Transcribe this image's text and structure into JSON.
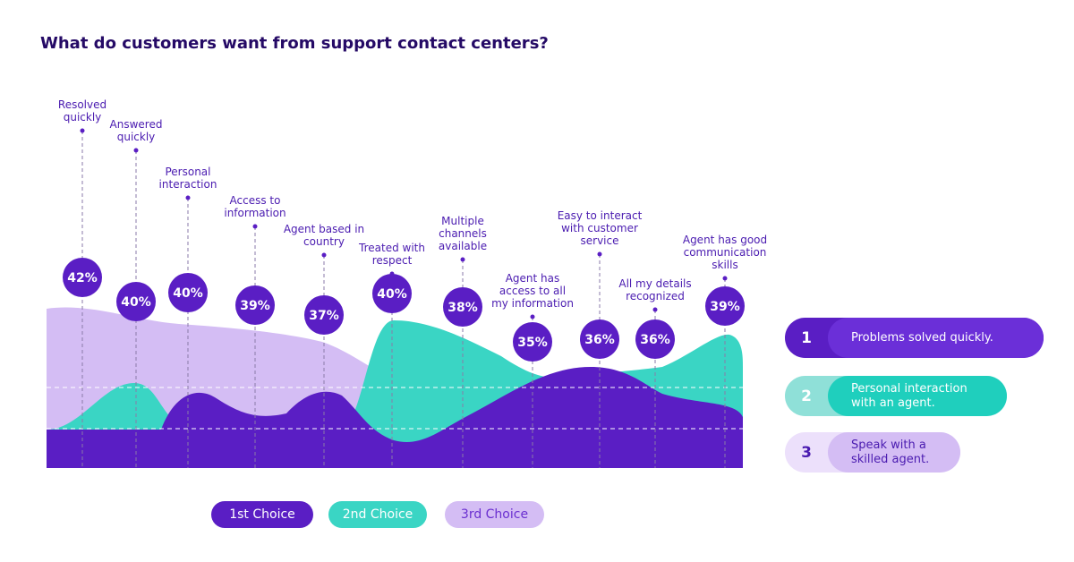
{
  "chart_data": {
    "type": "bubble-labels",
    "title": "What do customers want from support contact centers?",
    "categories": [
      "Resolved quickly",
      "Answered quickly",
      "Personal interaction",
      "Access to information",
      "Agent based in country",
      "Treated with respect",
      "Multiple channels available",
      "Agent has access to all my information",
      "Easy to interact with customer service",
      "All my details recognized",
      "Agent has good communication skills"
    ],
    "values": [
      42,
      40,
      40,
      39,
      37,
      40,
      38,
      35,
      36,
      36,
      39
    ],
    "value_labels": [
      "42%",
      "40%",
      "40%",
      "39%",
      "37%",
      "40%",
      "38%",
      "35%",
      "36%",
      "36%",
      "39%"
    ],
    "legend": [
      {
        "name": "1st Choice",
        "color": "#5a1ec4"
      },
      {
        "name": "2nd Choice",
        "color": "#3ad5c4"
      },
      {
        "name": "3rd Choice",
        "color": "#d4bdf4"
      }
    ]
  },
  "top_reasons": [
    {
      "rank": 1,
      "text": "Problems solved quickly."
    },
    {
      "rank": 2,
      "text": "Personal interaction with an agent."
    },
    {
      "rank": 3,
      "text": "Speak with a skilled agent."
    }
  ]
}
